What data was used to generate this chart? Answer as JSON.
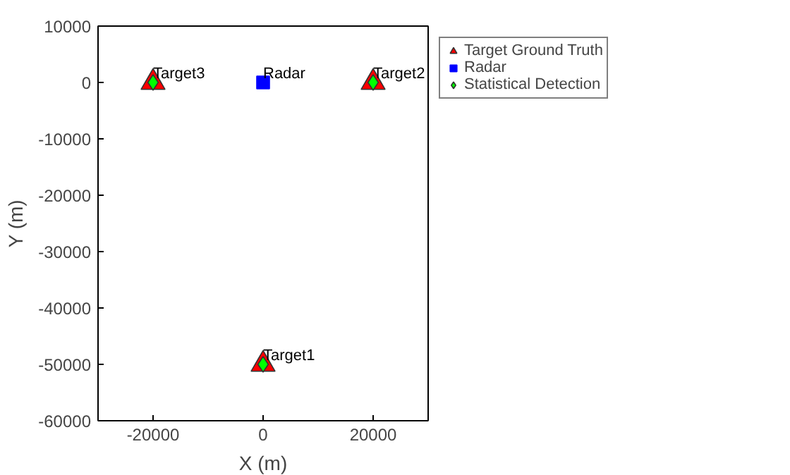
{
  "chart_data": {
    "type": "scatter",
    "xlabel": "X (m)",
    "ylabel": "Y (m)",
    "xlim": [
      -30000,
      30000
    ],
    "ylim": [
      -60000,
      10000
    ],
    "xticks": [
      -20000,
      0,
      20000
    ],
    "yticks": [
      -60000,
      -50000,
      -40000,
      -30000,
      -20000,
      -10000,
      0,
      10000
    ],
    "grid": false,
    "legend": "top right",
    "series": [
      {
        "name": "Target Ground Truth",
        "color": "#ff0000",
        "marker": "triangle",
        "x": [
          0,
          20000,
          -20000
        ],
        "values": [
          -50000,
          0,
          0
        ]
      },
      {
        "name": "Radar",
        "color": "#0000ff",
        "marker": "square",
        "x": [
          0
        ],
        "values": [
          0
        ]
      },
      {
        "name": "Statistical Detection",
        "color": "#00ff00",
        "marker": "diamond",
        "x": [
          0,
          20000,
          -20000
        ],
        "values": [
          -50000,
          0,
          0
        ]
      }
    ],
    "annotations": [
      {
        "text": "Target1",
        "x": 0,
        "y": -50000
      },
      {
        "text": "Target2",
        "x": 20000,
        "y": 0
      },
      {
        "text": "Target3",
        "x": -20000,
        "y": 0
      },
      {
        "text": "Radar",
        "x": 0,
        "y": 0
      }
    ]
  }
}
